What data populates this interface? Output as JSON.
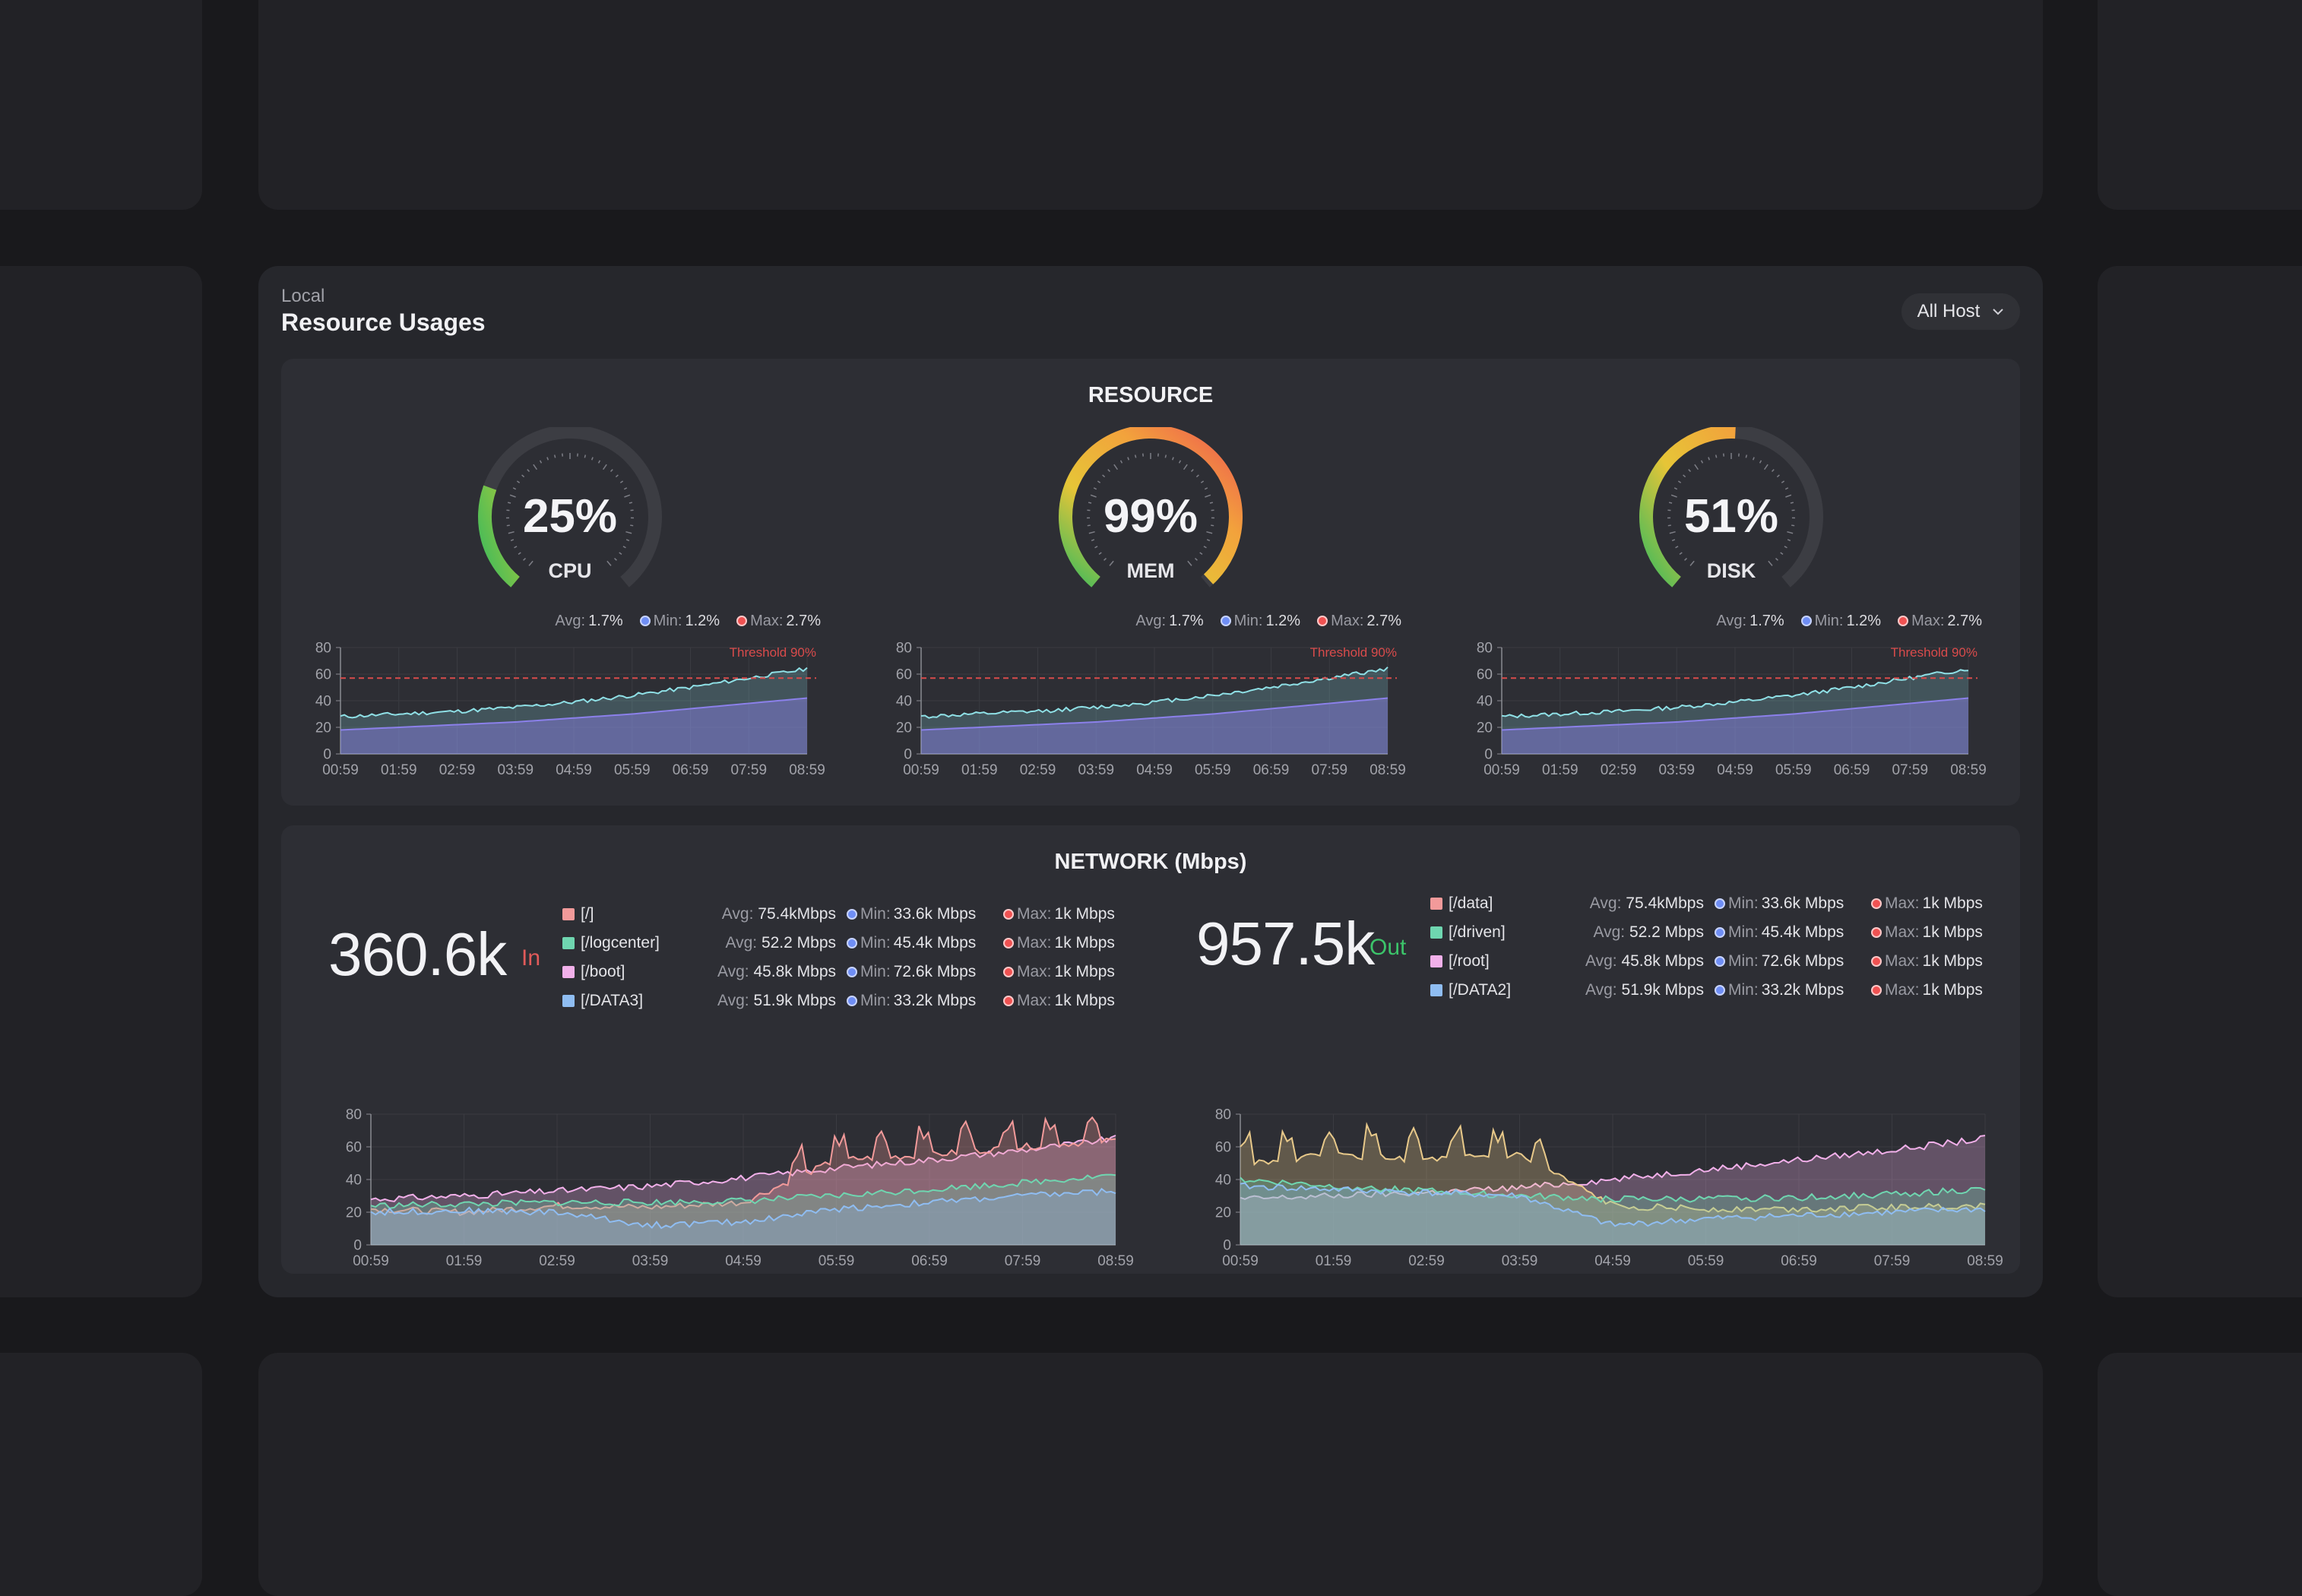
{
  "header": {
    "subtitle": "Local",
    "title": "Resource Usages",
    "host_filter": "All Host"
  },
  "resource": {
    "title": "RESOURCE",
    "gauges": [
      {
        "label": "CPU",
        "value_text": "25%",
        "value": 25,
        "avg": "1.7%",
        "min": "1.2%",
        "max": "2.7%"
      },
      {
        "label": "MEM",
        "value_text": "99%",
        "value": 99,
        "avg": "1.7%",
        "min": "1.2%",
        "max": "2.7%"
      },
      {
        "label": "DISK",
        "value_text": "51%",
        "value": 51,
        "avg": "1.7%",
        "min": "1.2%",
        "max": "2.7%"
      }
    ],
    "stat_labels": {
      "avg": "Avg:",
      "min": "Min:",
      "max": "Max:"
    },
    "threshold_label": "Threshold 90%"
  },
  "network": {
    "title": "NETWORK (Mbps)",
    "in": {
      "total": "360.6k",
      "direction": "In",
      "rows": [
        {
          "name": "[/]",
          "avg": "75.4kMbps",
          "min": "33.6k Mbps",
          "max": "1k Mbps"
        },
        {
          "name": "[/logcenter]",
          "avg": "52.2 Mbps",
          "min": "45.4k Mbps",
          "max": "1k Mbps"
        },
        {
          "name": "[/boot]",
          "avg": "45.8k Mbps",
          "min": "72.6k Mbps",
          "max": "1k Mbps"
        },
        {
          "name": "[/DATA3]",
          "avg": "51.9k Mbps",
          "min": "33.2k Mbps",
          "max": "1k Mbps"
        }
      ]
    },
    "out": {
      "total": "957.5k",
      "direction": "Out",
      "rows": [
        {
          "name": "[/data]",
          "avg": "75.4kMbps",
          "min": "33.6k Mbps",
          "max": "1k Mbps"
        },
        {
          "name": "[/driven]",
          "avg": "52.2 Mbps",
          "min": "45.4k Mbps",
          "max": "1k Mbps"
        },
        {
          "name": "[/root]",
          "avg": "45.8k Mbps",
          "min": "72.6k Mbps",
          "max": "1k Mbps"
        },
        {
          "name": "[/DATA2]",
          "avg": "51.9k Mbps",
          "min": "33.2k Mbps",
          "max": "1k Mbps"
        }
      ]
    }
  },
  "colors": {
    "series": [
      "#f29a9a",
      "#6fd6b0",
      "#f2b0ea",
      "#8fbdf2"
    ],
    "in_accent": "#e05a5a",
    "out_accent": "#3cc46a",
    "threshold": "#d94b4b",
    "usage_line": "#8fe0e6",
    "base_line": "#8b80ea"
  },
  "chart_data": [
    {
      "type": "area",
      "x": [
        "00:59",
        "01:59",
        "02:59",
        "03:59",
        "04:59",
        "05:59",
        "06:59",
        "07:59",
        "08:59"
      ],
      "ylim": [
        0,
        80
      ],
      "yticks": [
        0,
        20,
        40,
        60,
        80
      ],
      "threshold": 57,
      "series": [
        {
          "values": [
            28,
            30,
            32,
            35,
            39,
            44,
            50,
            57,
            64
          ]
        },
        {
          "values": [
            18,
            20,
            22,
            24,
            27,
            30,
            34,
            38,
            42
          ]
        }
      ]
    },
    {
      "type": "area",
      "x": [
        "00:59",
        "01:59",
        "02:59",
        "03:59",
        "04:59",
        "05:59",
        "06:59",
        "07:59",
        "08:59"
      ],
      "ylim": [
        0,
        80
      ],
      "yticks": [
        0,
        20,
        40,
        60,
        80
      ],
      "threshold": 57,
      "series": [
        {
          "values": [
            28,
            30,
            32,
            35,
            39,
            44,
            50,
            57,
            64
          ]
        },
        {
          "values": [
            18,
            20,
            22,
            24,
            27,
            30,
            34,
            38,
            42
          ]
        }
      ]
    },
    {
      "type": "area",
      "x": [
        "00:59",
        "01:59",
        "02:59",
        "03:59",
        "04:59",
        "05:59",
        "06:59",
        "07:59",
        "08:59"
      ],
      "ylim": [
        0,
        80
      ],
      "yticks": [
        0,
        20,
        40,
        60,
        80
      ],
      "threshold": 57,
      "series": [
        {
          "values": [
            28,
            30,
            32,
            35,
            39,
            44,
            50,
            57,
            64
          ]
        },
        {
          "values": [
            18,
            20,
            22,
            24,
            27,
            30,
            34,
            38,
            42
          ]
        }
      ]
    },
    {
      "type": "area",
      "x": [
        "00:59",
        "01:59",
        "02:59",
        "03:59",
        "04:59",
        "05:59",
        "06:59",
        "07:59",
        "08:59"
      ],
      "ylim": [
        0,
        80
      ],
      "yticks": [
        0,
        20,
        40,
        60,
        80
      ],
      "series": [
        {
          "name": "[/boot]",
          "values": [
            28,
            30,
            33,
            36,
            41,
            47,
            52,
            58,
            65
          ]
        },
        {
          "name": "[/]",
          "values": [
            22,
            20,
            24,
            23,
            26,
            52,
            55,
            60,
            64
          ]
        },
        {
          "name": "[/logcenter]",
          "values": [
            24,
            25,
            26,
            26,
            27,
            30,
            34,
            38,
            43
          ]
        },
        {
          "name": "[/DATA3]",
          "values": [
            20,
            21,
            20,
            12,
            14,
            22,
            26,
            30,
            33
          ]
        }
      ]
    },
    {
      "type": "area",
      "x": [
        "00:59",
        "01:59",
        "02:59",
        "03:59",
        "04:59",
        "05:59",
        "06:59",
        "07:59",
        "08:59"
      ],
      "ylim": [
        0,
        80
      ],
      "yticks": [
        0,
        20,
        40,
        60,
        80
      ],
      "series": [
        {
          "name": "[/root]",
          "values": [
            28,
            30,
            32,
            35,
            40,
            46,
            52,
            58,
            65
          ]
        },
        {
          "name": "[/data]",
          "values": [
            50,
            55,
            52,
            55,
            24,
            22,
            22,
            23,
            24
          ]
        },
        {
          "name": "[/driven]",
          "values": [
            40,
            36,
            33,
            30,
            28,
            28,
            29,
            31,
            34
          ]
        },
        {
          "name": "[/DATA2]",
          "values": [
            36,
            34,
            32,
            30,
            12,
            16,
            18,
            20,
            22
          ]
        }
      ]
    }
  ]
}
